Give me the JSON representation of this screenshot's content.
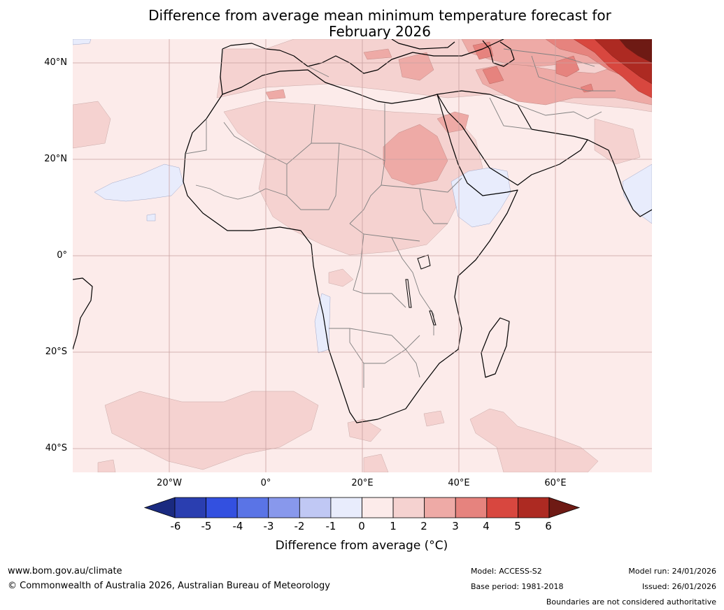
{
  "map": {
    "title_line1": "Difference from average mean minimum temperature forecast for",
    "title_line2": "February 2026",
    "lat_labels": [
      "40°N",
      "20°N",
      "0°",
      "20°S",
      "40°S"
    ],
    "lon_labels": [
      "20°W",
      "0°",
      "20°E",
      "40°E",
      "60°E"
    ]
  },
  "colorbar": {
    "title": "Difference from average (°C)",
    "ticks": [
      "-6",
      "-5",
      "-4",
      "-3",
      "-2",
      "-1",
      "0",
      "1",
      "2",
      "3",
      "4",
      "5",
      "6"
    ],
    "colors": {
      "under": "#1a2a80",
      "bins": [
        "#2a3eb0",
        "#3350e0",
        "#5a74e6",
        "#8898ec",
        "#c0c8f4",
        "#e8ecfc",
        "#fcebea",
        "#f5d2d0",
        "#eeaaa6",
        "#e6837e",
        "#d8473f",
        "#ad2a22"
      ],
      "over": "#6e1a14"
    }
  },
  "footer": {
    "website": "www.bom.gov.au/climate",
    "copyright": "© Commonwealth of Australia 2026, Australian Bureau of Meteorology",
    "model": "Model: ACCESS-S2",
    "base_period": "Base period: 1981-2018",
    "model_run": "Model run: 24/01/2026",
    "issued": "Issued: 26/01/2026",
    "disclaimer": "Boundaries are not considered authoritative"
  }
}
